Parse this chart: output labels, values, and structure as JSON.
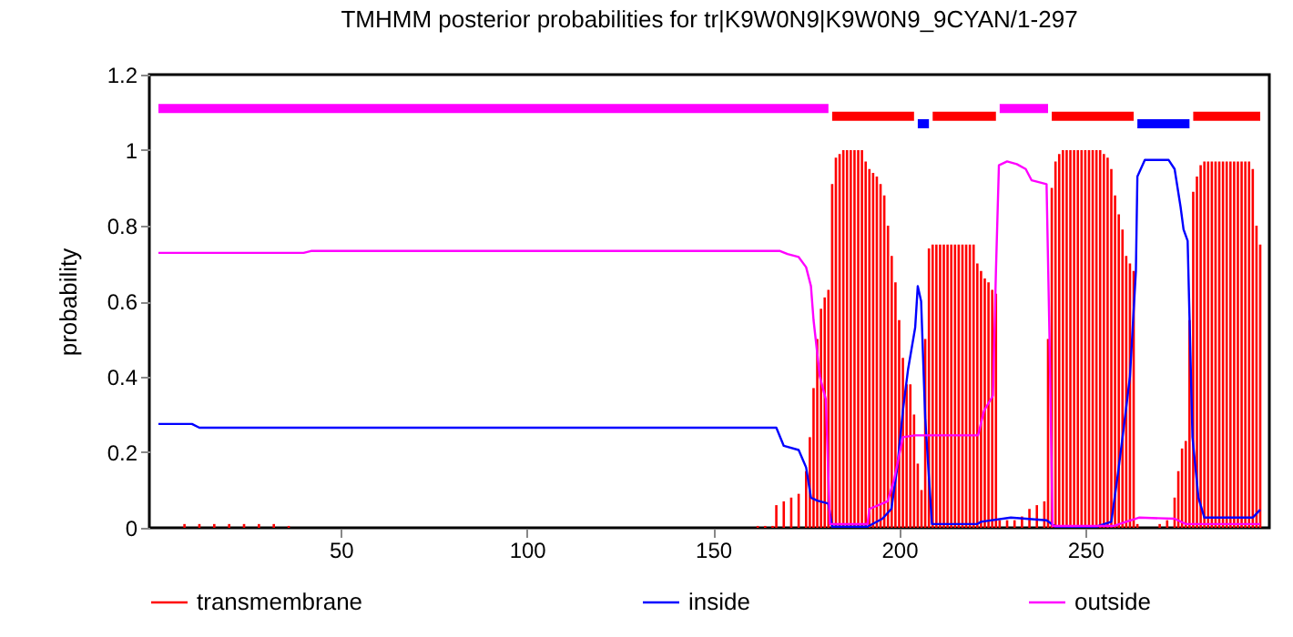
{
  "chart_data": {
    "type": "line",
    "title": "TMHMM posterior probabilities for tr|K9W0N9|K9W0N9_9CYAN/1-297",
    "ylabel": "probability",
    "xlim": [
      1,
      297
    ],
    "xticks": [
      50,
      100,
      150,
      200,
      250
    ],
    "ylim": [
      0,
      1.2
    ],
    "yticks": [
      0,
      0.2,
      0.4,
      0.6,
      0.8,
      1,
      1.2
    ],
    "grid": false,
    "legend": "bottom",
    "marker": "none",
    "line_style": "solid",
    "series": [
      {
        "name": "transmembrane",
        "type": "bar",
        "color": "#ff0000",
        "x": [
          8,
          12,
          16,
          20,
          24,
          28,
          32,
          36,
          162,
          164,
          166,
          167,
          169,
          171,
          173,
          175,
          176,
          177,
          178,
          179,
          180,
          181,
          182,
          183,
          184,
          185,
          186,
          187,
          188,
          189,
          190,
          191,
          192,
          193,
          194,
          195,
          196,
          197,
          198,
          199,
          200,
          201,
          202,
          203,
          204,
          205,
          206,
          207,
          208,
          209,
          210,
          211,
          212,
          213,
          214,
          215,
          216,
          217,
          218,
          219,
          220,
          221,
          222,
          223,
          224,
          225,
          226,
          227,
          229,
          231,
          233,
          235,
          237,
          239,
          240,
          241,
          242,
          243,
          244,
          245,
          246,
          247,
          248,
          249,
          250,
          251,
          252,
          253,
          254,
          255,
          256,
          257,
          258,
          259,
          260,
          261,
          262,
          263,
          264,
          270,
          272,
          274,
          275,
          276,
          277,
          278,
          279,
          280,
          281,
          282,
          283,
          284,
          285,
          286,
          287,
          288,
          289,
          290,
          291,
          292,
          293,
          294,
          295,
          296,
          297
        ],
        "values": [
          0.01,
          0.01,
          0.01,
          0.01,
          0.01,
          0.01,
          0.01,
          0.005,
          0.005,
          0.005,
          0.005,
          0.06,
          0.07,
          0.08,
          0.09,
          0.15,
          0.24,
          0.37,
          0.5,
          0.58,
          0.61,
          0.63,
          0.91,
          0.98,
          0.99,
          1,
          1,
          1,
          1,
          1,
          1,
          0.97,
          0.95,
          0.94,
          0.93,
          0.91,
          0.88,
          0.8,
          0.72,
          0.65,
          0.55,
          0.45,
          0.38,
          0.38,
          0.3,
          0.17,
          0.1,
          0.5,
          0.74,
          0.75,
          0.75,
          0.75,
          0.75,
          0.75,
          0.75,
          0.75,
          0.75,
          0.75,
          0.75,
          0.75,
          0.75,
          0.7,
          0.68,
          0.66,
          0.65,
          0.63,
          0.62,
          0.02,
          0.02,
          0.02,
          0.03,
          0.05,
          0.06,
          0.07,
          0.5,
          0.9,
          0.97,
          0.99,
          1,
          1,
          1,
          1,
          1,
          1,
          1,
          1,
          1,
          1,
          1,
          0.99,
          0.98,
          0.95,
          0.88,
          0.83,
          0.79,
          0.72,
          0.7,
          0.68,
          0.01,
          0.01,
          0.02,
          0.08,
          0.15,
          0.21,
          0.23,
          0.55,
          0.89,
          0.93,
          0.96,
          0.97,
          0.97,
          0.97,
          0.97,
          0.97,
          0.97,
          0.97,
          0.97,
          0.97,
          0.97,
          0.97,
          0.97,
          0.97,
          0.95,
          0.8,
          0.75
        ]
      },
      {
        "name": "inside",
        "color": "#0000ff",
        "x": [
          1,
          10,
          12,
          167,
          169,
          173,
          175,
          176.3,
          178,
          181,
          182,
          191.5,
          195.5,
          197.9,
          199.5,
          201,
          202.4,
          204.3,
          205,
          205.9,
          207,
          208.8,
          221,
          222,
          230,
          239.6,
          242,
          253,
          257,
          258.8,
          260.4,
          262,
          263.6,
          264,
          266,
          272.4,
          274,
          275.6,
          276.4,
          277.5,
          278,
          278.8,
          280.4,
          282,
          295,
          297
        ],
        "values": [
          0.275,
          0.275,
          0.265,
          0.265,
          0.217,
          0.206,
          0.16,
          0.08,
          0.072,
          0.064,
          0.003,
          0.003,
          0.024,
          0.05,
          0.16,
          0.31,
          0.42,
          0.53,
          0.64,
          0.6,
          0.29,
          0.01,
          0.01,
          0.016,
          0.027,
          0.02,
          0.003,
          0.003,
          0.016,
          0.145,
          0.27,
          0.4,
          0.68,
          0.93,
          0.974,
          0.974,
          0.95,
          0.85,
          0.79,
          0.76,
          0.56,
          0.24,
          0.08,
          0.027,
          0.027,
          0.048
        ]
      },
      {
        "name": "outside",
        "color": "#ff00ff",
        "x": [
          1,
          40,
          42,
          168,
          170,
          173,
          175,
          176.3,
          177,
          178.7,
          180.3,
          181.4,
          191.5,
          192,
          196.9,
          198.7,
          201,
          204.3,
          221.2,
          222.8,
          225.2,
          226,
          226.8,
          229,
          231.6,
          234,
          235.6,
          239.6,
          240.4,
          241.2,
          257.7,
          261,
          264.4,
          274,
          277,
          297
        ],
        "values": [
          0.728,
          0.728,
          0.733,
          0.733,
          0.725,
          0.717,
          0.69,
          0.64,
          0.55,
          0.4,
          0.34,
          0.01,
          0.01,
          0.05,
          0.07,
          0.13,
          0.24,
          0.245,
          0.245,
          0.31,
          0.35,
          0.68,
          0.96,
          0.97,
          0.963,
          0.95,
          0.92,
          0.91,
          0.5,
          0.005,
          0.005,
          0.016,
          0.027,
          0.024,
          0.01,
          0.01
        ]
      },
      {
        "color": "#ff0000",
        "x": [
          182,
          204,
          null,
          209,
          226,
          null,
          241,
          263,
          null,
          279,
          297
        ],
        "values": [
          1.09,
          1.09,
          null,
          1.09,
          1.09,
          null,
          1.09,
          1.09,
          null,
          1.09,
          1.09
        ]
      },
      {
        "color": "#0000ff",
        "x": [
          205,
          208,
          null,
          264,
          278
        ],
        "values": [
          1.07,
          1.07,
          null,
          1.07,
          1.07
        ]
      },
      {
        "color": "#ff00ff",
        "x": [
          1,
          181,
          null,
          227,
          240
        ],
        "values": [
          1.11,
          1.11,
          null,
          1.11,
          1.11
        ]
      }
    ]
  }
}
